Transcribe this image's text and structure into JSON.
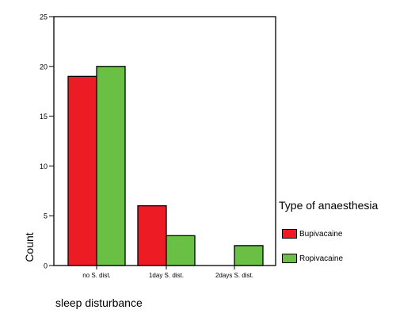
{
  "chart_data": {
    "type": "bar",
    "categories": [
      "no S. dist.",
      "1day S. dist.",
      "2days S. dist."
    ],
    "series": [
      {
        "name": "Bupivacaine",
        "values": [
          19,
          6,
          0
        ],
        "color": "#ed1c24"
      },
      {
        "name": "Ropivacaine",
        "values": [
          20,
          3,
          2
        ],
        "color": "#6abf45"
      }
    ],
    "title": "",
    "xlabel": "sleep disturbance",
    "ylabel": "Count",
    "ylim": [
      0,
      25
    ],
    "yticks": [
      0,
      5,
      10,
      15,
      20,
      25
    ],
    "grid": false,
    "legend": {
      "title": "Type of anaesthesia",
      "placement": "right"
    }
  }
}
